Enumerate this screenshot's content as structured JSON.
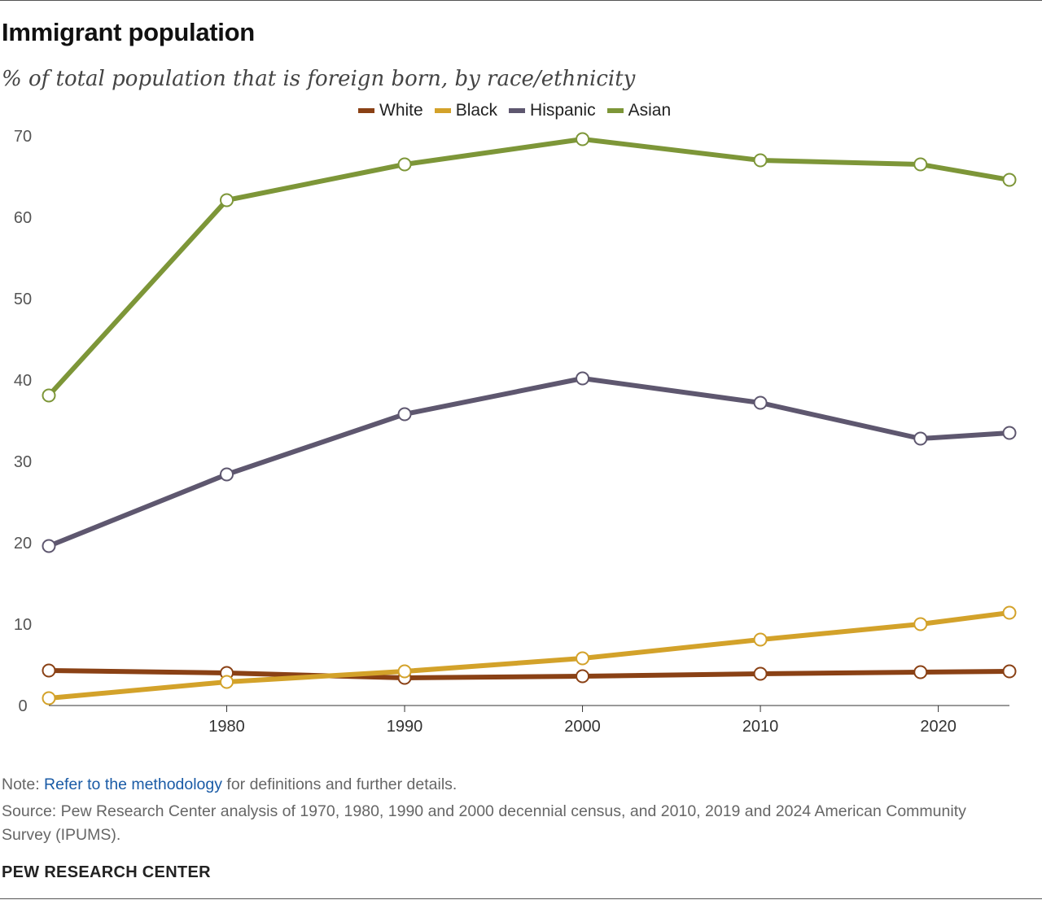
{
  "title": "Immigrant population",
  "subtitle": "% of total population that is foreign born, by race/ethnicity",
  "note": {
    "prefix": "Note: ",
    "link_text": "Refer to the methodology",
    "suffix": " for definitions and further details."
  },
  "source": "Source: Pew Research Center analysis of 1970, 1980, 1990 and 2000 decennial census, and 2010, 2019 and 2024 American Community Survey (IPUMS).",
  "brand": "PEW RESEARCH CENTER",
  "chart_data": {
    "type": "line",
    "title": "Immigrant population",
    "xlabel": "",
    "ylabel": "",
    "x": [
      1970,
      1980,
      1990,
      2000,
      2010,
      2019,
      2024
    ],
    "xticks": [
      "1980",
      "1990",
      "2000",
      "2010",
      "2020"
    ],
    "xtick_values": [
      1980,
      1990,
      2000,
      2010,
      2020
    ],
    "xlim": [
      1970,
      2024
    ],
    "ylim": [
      0,
      70
    ],
    "yticks": [
      0,
      10,
      20,
      30,
      40,
      50,
      60,
      70
    ],
    "grid": false,
    "legend_position": "top-center",
    "series": [
      {
        "name": "White",
        "color": "#8a4115",
        "values": [
          4.3,
          4.0,
          3.4,
          3.6,
          3.9,
          4.1,
          4.2
        ]
      },
      {
        "name": "Black",
        "color": "#d3a22a",
        "values": [
          0.9,
          2.9,
          4.2,
          5.8,
          8.1,
          10.0,
          11.4
        ]
      },
      {
        "name": "Hispanic",
        "color": "#5e576f",
        "values": [
          19.6,
          28.4,
          35.8,
          40.2,
          37.2,
          32.8,
          33.5
        ]
      },
      {
        "name": "Asian",
        "color": "#7d9638",
        "values": [
          38.1,
          62.1,
          66.5,
          69.6,
          67.0,
          66.5,
          64.6
        ]
      }
    ]
  }
}
